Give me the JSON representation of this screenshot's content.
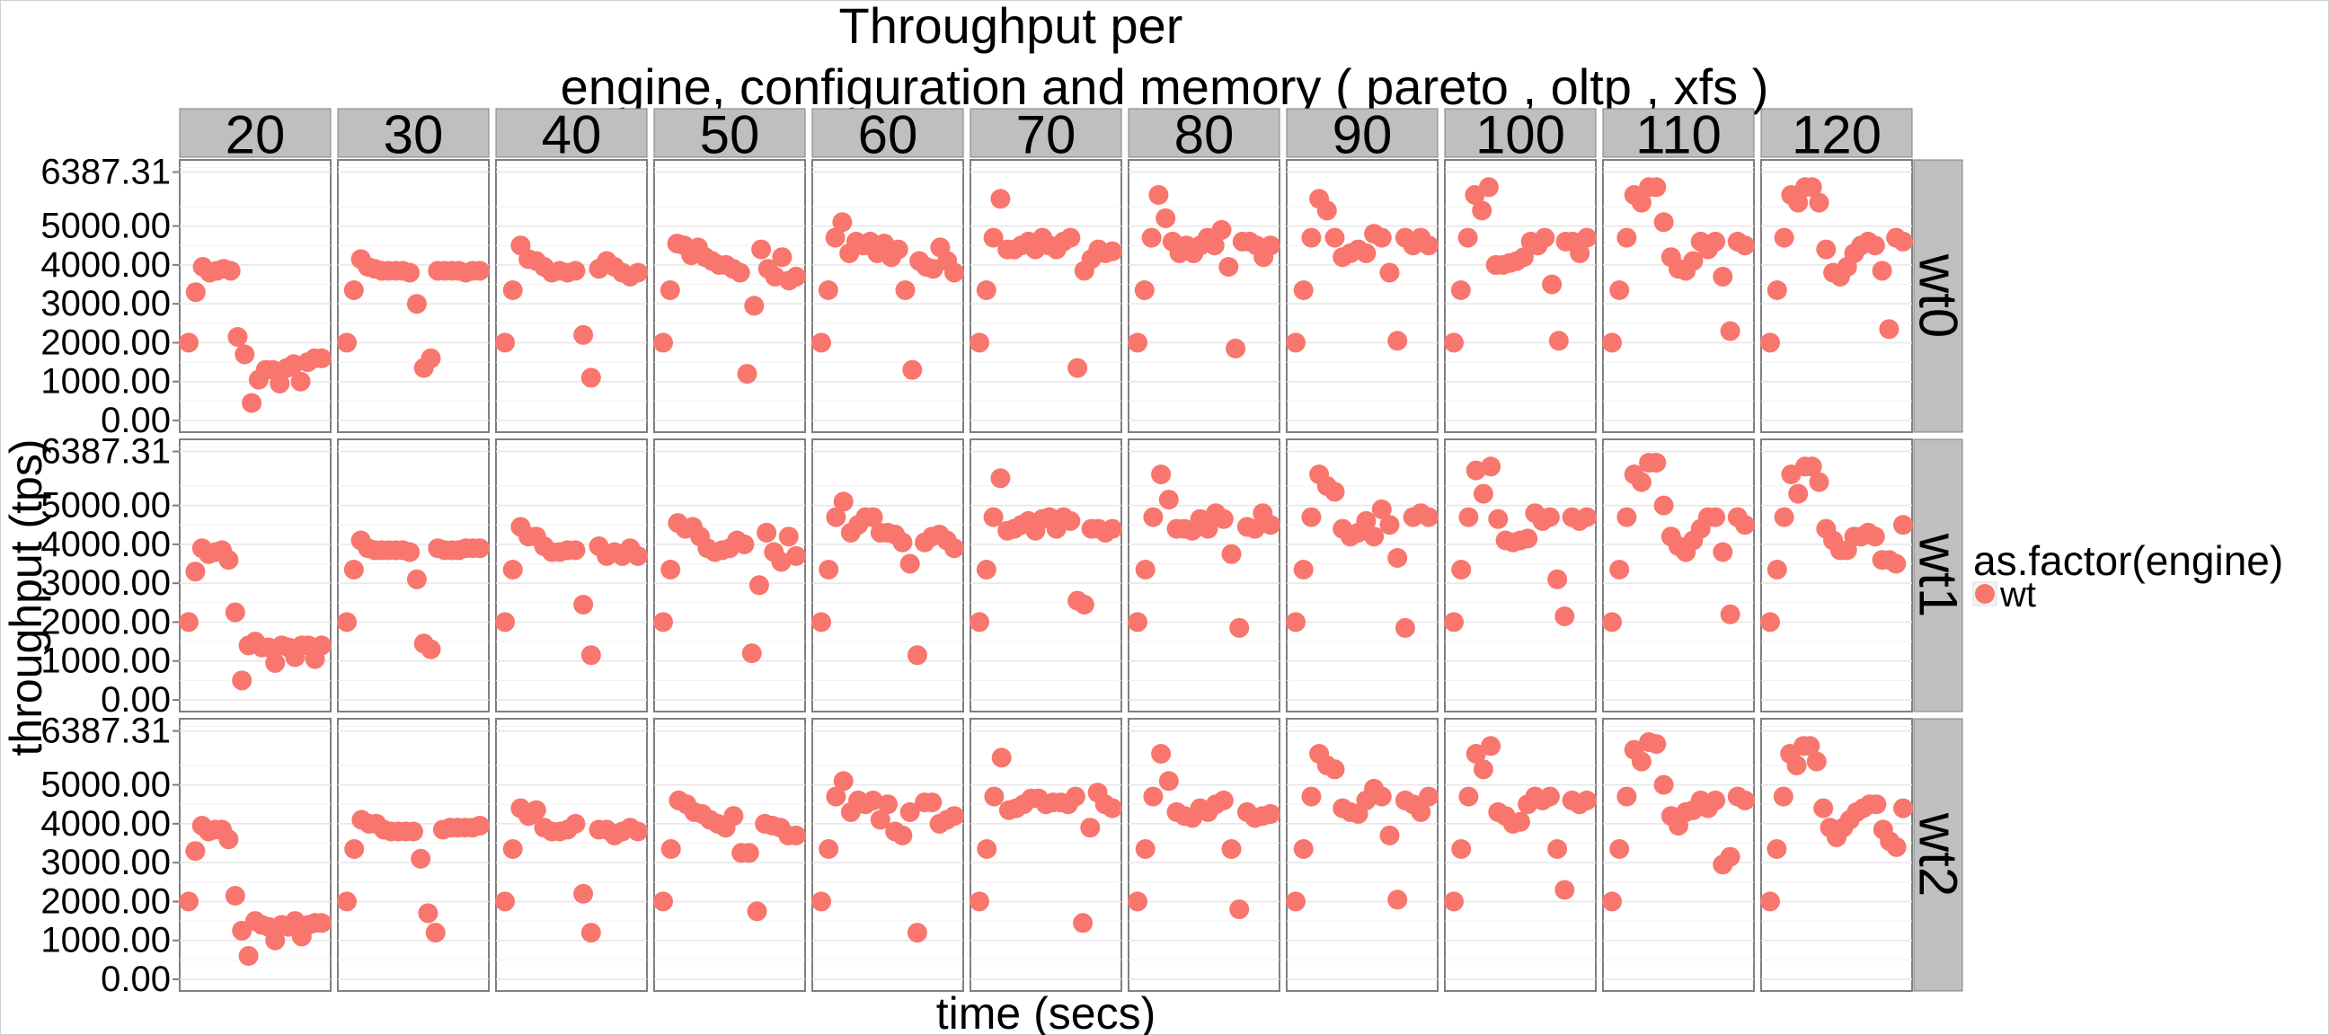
{
  "chart_data": {
    "type": "scatter",
    "title_lines": [
      "Throughput per",
      "engine, configuration and memory ( pareto , oltp , xfs )"
    ],
    "xlabel": "time (secs)",
    "ylabel": "throughput (tps)",
    "ylim": [
      -300,
      6700
    ],
    "y_ticks": [
      0,
      1000,
      2000,
      3000,
      4000,
      5000,
      6387.31
    ],
    "y_tick_labels": [
      "0.00",
      "1000.00",
      "2000.00",
      "3000.00",
      "4000.00",
      "5000.00",
      "6387.31"
    ],
    "facet_columns": [
      "20",
      "30",
      "40",
      "50",
      "60",
      "70",
      "80",
      "90",
      "100",
      "110",
      "120"
    ],
    "facet_rows": [
      "wt0",
      "wt1",
      "wt2"
    ],
    "point_color": "#F8766D",
    "legend": {
      "title": "as.factor(engine)",
      "entries": [
        "wt"
      ],
      "placement": "right"
    },
    "panels": [
      {
        "row": "wt0",
        "col": "20",
        "y": [
          2000,
          3300,
          3950,
          3800,
          3850,
          3900,
          3850,
          2150,
          1700,
          450,
          1050,
          1300,
          1300,
          950,
          1350,
          1450,
          1000,
          1500,
          1600,
          1600
        ]
      },
      {
        "row": "wt0",
        "col": "30",
        "y": [
          2000,
          3350,
          4150,
          3950,
          3900,
          3850,
          3850,
          3850,
          3850,
          3800,
          3000,
          1350,
          1600,
          3850,
          3850,
          3850,
          3850,
          3800,
          3850,
          3850
        ]
      },
      {
        "row": "wt0",
        "col": "40",
        "y": [
          2000,
          3350,
          4500,
          4150,
          4100,
          3950,
          3800,
          3850,
          3800,
          3850,
          2200,
          1100,
          3900,
          4100,
          3950,
          3800,
          3700,
          3800
        ]
      },
      {
        "row": "wt0",
        "col": "50",
        "y": [
          2000,
          3350,
          4550,
          4500,
          4250,
          4450,
          4200,
          4100,
          4000,
          4000,
          3900,
          3800,
          1200,
          2950,
          4400,
          3900,
          3700,
          4200,
          3600,
          3700
        ]
      },
      {
        "row": "wt0",
        "col": "60",
        "y": [
          2000,
          3350,
          4700,
          5100,
          4300,
          4600,
          4500,
          4600,
          4300,
          4550,
          4200,
          4400,
          3350,
          1300,
          4100,
          3950,
          3900,
          4450,
          4100,
          3800
        ]
      },
      {
        "row": "wt0",
        "col": "70",
        "y": [
          2000,
          3350,
          4700,
          5700,
          4400,
          4400,
          4500,
          4600,
          4400,
          4700,
          4500,
          4400,
          4600,
          4700,
          1350,
          3850,
          4150,
          4400,
          4300,
          4350
        ]
      },
      {
        "row": "wt0",
        "col": "80",
        "y": [
          2000,
          3350,
          4700,
          5800,
          5200,
          4600,
          4300,
          4500,
          4300,
          4500,
          4700,
          4500,
          4900,
          3950,
          1850,
          4600,
          4600,
          4500,
          4200,
          4500
        ]
      },
      {
        "row": "wt0",
        "col": "90",
        "y": [
          2000,
          3350,
          4700,
          5700,
          5400,
          4700,
          4200,
          4300,
          4400,
          4300,
          4800,
          4700,
          3800,
          2050,
          4700,
          4500,
          4700,
          4500
        ]
      },
      {
        "row": "wt0",
        "col": "100",
        "y": [
          2000,
          3350,
          4700,
          5800,
          5400,
          6000,
          4000,
          4000,
          4050,
          4100,
          4200,
          4600,
          4500,
          4700,
          3500,
          2050,
          4600,
          4600,
          4300,
          4700
        ]
      },
      {
        "row": "wt0",
        "col": "110",
        "y": [
          2000,
          3350,
          4700,
          5800,
          5600,
          6000,
          6000,
          5100,
          4200,
          3900,
          3850,
          4100,
          4600,
          4400,
          4600,
          3700,
          2300,
          4600,
          4500
        ]
      },
      {
        "row": "wt0",
        "col": "120",
        "y": [
          2000,
          3350,
          4700,
          5800,
          5600,
          6000,
          6000,
          5600,
          4400,
          3800,
          3700,
          3950,
          4300,
          4500,
          4600,
          4500,
          3850,
          2350,
          4700,
          4600
        ]
      },
      {
        "row": "wt1",
        "col": "20",
        "y": [
          2000,
          3300,
          3900,
          3750,
          3800,
          3850,
          3600,
          2250,
          500,
          1400,
          1500,
          1350,
          1350,
          950,
          1400,
          1350,
          1100,
          1400,
          1400,
          1050,
          1400
        ]
      },
      {
        "row": "wt1",
        "col": "30",
        "y": [
          2000,
          3350,
          4100,
          3900,
          3850,
          3850,
          3850,
          3850,
          3850,
          3800,
          3100,
          1450,
          1300,
          3900,
          3850,
          3850,
          3850,
          3900,
          3900,
          3900
        ]
      },
      {
        "row": "wt1",
        "col": "40",
        "y": [
          2000,
          3350,
          4450,
          4200,
          4200,
          3950,
          3800,
          3800,
          3850,
          3850,
          2450,
          1150,
          3950,
          3700,
          3800,
          3700,
          3900,
          3700
        ]
      },
      {
        "row": "wt1",
        "col": "50",
        "y": [
          2000,
          3350,
          4550,
          4400,
          4450,
          4200,
          3900,
          3800,
          3850,
          3900,
          4100,
          4000,
          1200,
          2950,
          4300,
          3800,
          3550,
          4200,
          3700
        ]
      },
      {
        "row": "wt1",
        "col": "60",
        "y": [
          2000,
          3350,
          4700,
          5100,
          4300,
          4500,
          4700,
          4700,
          4300,
          4300,
          4250,
          4050,
          3500,
          1150,
          4050,
          4200,
          4250,
          4100,
          3900
        ]
      },
      {
        "row": "wt1",
        "col": "70",
        "y": [
          2000,
          3350,
          4700,
          5700,
          4350,
          4400,
          4500,
          4600,
          4350,
          4650,
          4700,
          4400,
          4700,
          4600,
          2550,
          2450,
          4400,
          4400,
          4300,
          4400
        ]
      },
      {
        "row": "wt1",
        "col": "80",
        "y": [
          2000,
          3350,
          4700,
          5800,
          5150,
          4400,
          4400,
          4350,
          4650,
          4400,
          4800,
          4650,
          3750,
          1850,
          4450,
          4400,
          4800,
          4500
        ]
      },
      {
        "row": "wt1",
        "col": "90",
        "y": [
          2000,
          3350,
          4700,
          5800,
          5500,
          5350,
          4400,
          4200,
          4300,
          4600,
          4200,
          4900,
          4500,
          3650,
          1850,
          4700,
          4800,
          4700
        ]
      },
      {
        "row": "wt1",
        "col": "100",
        "y": [
          2000,
          3350,
          4700,
          5900,
          5300,
          6000,
          4650,
          4100,
          4050,
          4100,
          4150,
          4800,
          4600,
          4700,
          3100,
          2150,
          4700,
          4600,
          4700
        ]
      },
      {
        "row": "wt1",
        "col": "110",
        "y": [
          2000,
          3350,
          4700,
          5800,
          5600,
          6100,
          6100,
          5000,
          4200,
          3950,
          3800,
          4100,
          4400,
          4700,
          4700,
          3800,
          2200,
          4700,
          4500
        ]
      },
      {
        "row": "wt1",
        "col": "120",
        "y": [
          2000,
          3350,
          4700,
          5800,
          5300,
          6000,
          6000,
          5600,
          4400,
          4100,
          3850,
          3850,
          4200,
          4200,
          4300,
          4200,
          3600,
          3600,
          3500,
          4500
        ]
      },
      {
        "row": "wt2",
        "col": "20",
        "y": [
          2000,
          3300,
          3950,
          3800,
          3850,
          3850,
          3600,
          2150,
          1250,
          600,
          1500,
          1400,
          1350,
          1000,
          1400,
          1350,
          1500,
          1100,
          1400,
          1450,
          1450
        ]
      },
      {
        "row": "wt2",
        "col": "30",
        "y": [
          2000,
          3350,
          4100,
          4000,
          4000,
          3850,
          3800,
          3800,
          3800,
          3800,
          3100,
          1700,
          1200,
          3850,
          3900,
          3900,
          3900,
          3900,
          3950
        ]
      },
      {
        "row": "wt2",
        "col": "40",
        "y": [
          2000,
          3350,
          4400,
          4200,
          4350,
          3900,
          3800,
          3800,
          3850,
          4000,
          2200,
          1200,
          3850,
          3850,
          3700,
          3800,
          3900,
          3800
        ]
      },
      {
        "row": "wt2",
        "col": "50",
        "y": [
          2000,
          3350,
          4600,
          4500,
          4300,
          4250,
          4100,
          4000,
          3900,
          4200,
          3250,
          3250,
          1750,
          4000,
          3950,
          3900,
          3700,
          3700
        ]
      },
      {
        "row": "wt2",
        "col": "60",
        "y": [
          2000,
          3350,
          4700,
          5100,
          4300,
          4600,
          4500,
          4600,
          4100,
          4500,
          3800,
          3700,
          4300,
          1200,
          4550,
          4550,
          4000,
          4100,
          4200
        ]
      },
      {
        "row": "wt2",
        "col": "70",
        "y": [
          2000,
          3350,
          4700,
          5700,
          4350,
          4400,
          4500,
          4650,
          4650,
          4500,
          4550,
          4550,
          4500,
          4700,
          1450,
          3900,
          4800,
          4500,
          4400
        ]
      },
      {
        "row": "wt2",
        "col": "80",
        "y": [
          2000,
          3350,
          4700,
          5800,
          5100,
          4300,
          4200,
          4150,
          4400,
          4300,
          4500,
          4600,
          3350,
          1800,
          4300,
          4150,
          4200,
          4250
        ]
      },
      {
        "row": "wt2",
        "col": "90",
        "y": [
          2000,
          3350,
          4700,
          5800,
          5500,
          5400,
          4400,
          4300,
          4250,
          4600,
          4900,
          4700,
          3700,
          2050,
          4600,
          4500,
          4300,
          4700
        ]
      },
      {
        "row": "wt2",
        "col": "100",
        "y": [
          2000,
          3350,
          4700,
          5800,
          5400,
          6000,
          4300,
          4200,
          4000,
          4050,
          4500,
          4700,
          4600,
          4700,
          3350,
          2300,
          4600,
          4500,
          4600
        ]
      },
      {
        "row": "wt2",
        "col": "110",
        "y": [
          2000,
          3350,
          4700,
          5900,
          5600,
          6100,
          6050,
          5000,
          4200,
          3950,
          4300,
          4350,
          4600,
          4400,
          4600,
          2950,
          3150,
          4700,
          4600
        ]
      },
      {
        "row": "wt2",
        "col": "120",
        "y": [
          2000,
          3350,
          4700,
          5800,
          5500,
          6000,
          6000,
          5600,
          4400,
          3900,
          3650,
          3900,
          4100,
          4300,
          4400,
          4500,
          4500,
          3850,
          3550,
          3400,
          4400
        ]
      }
    ]
  }
}
